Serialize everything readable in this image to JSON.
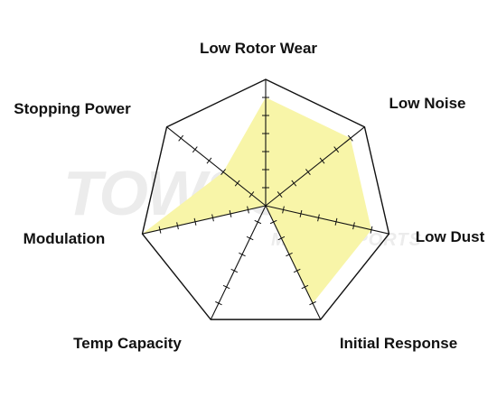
{
  "chart_data": {
    "type": "radar",
    "axes": [
      "Low Rotor Wear",
      "Low Noise",
      "Low Dust",
      "Initial Response",
      "Temp Capacity",
      "Modulation",
      "Stopping Power"
    ],
    "values": [
      6,
      6,
      6,
      6,
      0,
      7,
      3
    ],
    "max": 7,
    "ticks_per_axis": 7,
    "grid": "outer polygon only",
    "fill_color": "#f8f5a8",
    "stroke_color": "#111111"
  },
  "watermark": {
    "main": "TOWSON",
    "sub": "MOTORSPORTS"
  }
}
